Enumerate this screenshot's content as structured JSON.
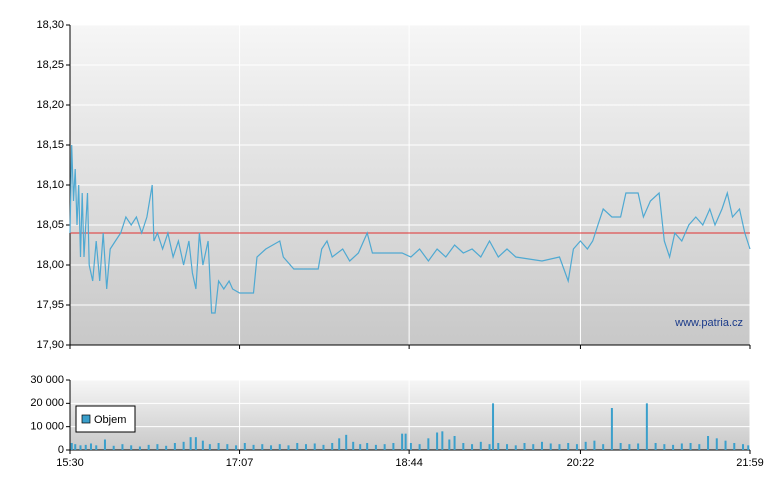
{
  "chart_data": [
    {
      "type": "line",
      "watermark": "www.patria.cz",
      "color": "#4fa9d2",
      "reference_line": {
        "value": 18.04,
        "color": "#e03030"
      },
      "xlim": [
        930,
        1319
      ],
      "ylim": [
        17.9,
        18.3
      ],
      "yticks": [
        {
          "value": 17.9,
          "label": "17,90"
        },
        {
          "value": 17.95,
          "label": "17,95"
        },
        {
          "value": 18.0,
          "label": "18,00"
        },
        {
          "value": 18.05,
          "label": "18,05"
        },
        {
          "value": 18.1,
          "label": "18,10"
        },
        {
          "value": 18.15,
          "label": "18,15"
        },
        {
          "value": 18.2,
          "label": "18,20"
        },
        {
          "value": 18.25,
          "label": "18,25"
        },
        {
          "value": 18.3,
          "label": "18,30"
        }
      ],
      "grid": true,
      "x": [
        930,
        931,
        932,
        933,
        934,
        935,
        936,
        937,
        938,
        940,
        941,
        943,
        945,
        947,
        949,
        951,
        953,
        956,
        959,
        962,
        965,
        968,
        971,
        974,
        977,
        978,
        980,
        983,
        986,
        989,
        992,
        995,
        998,
        1000,
        1002,
        1004,
        1006,
        1009,
        1011,
        1013,
        1015,
        1018,
        1021,
        1023,
        1027,
        1035,
        1037,
        1042,
        1050,
        1052,
        1058,
        1072,
        1074,
        1077,
        1080,
        1086,
        1090,
        1095,
        1100,
        1103,
        1120,
        1125,
        1130,
        1135,
        1140,
        1145,
        1150,
        1155,
        1160,
        1165,
        1170,
        1175,
        1180,
        1185,
        1200,
        1210,
        1215,
        1218,
        1222,
        1226,
        1229,
        1232,
        1235,
        1240,
        1245,
        1248,
        1255,
        1258,
        1262,
        1267,
        1270,
        1273,
        1276,
        1280,
        1284,
        1288,
        1292,
        1296,
        1299,
        1303,
        1306,
        1309,
        1313,
        1316,
        1319
      ],
      "values": [
        18.04,
        18.15,
        18.08,
        18.12,
        18.05,
        18.1,
        18.01,
        18.09,
        18.01,
        18.09,
        18.0,
        17.98,
        18.03,
        17.98,
        18.04,
        17.97,
        18.02,
        18.03,
        18.04,
        18.06,
        18.05,
        18.06,
        18.04,
        18.06,
        18.1,
        18.03,
        18.04,
        18.02,
        18.04,
        18.01,
        18.03,
        18.0,
        18.03,
        17.99,
        17.97,
        18.04,
        18.0,
        18.03,
        17.94,
        17.94,
        17.98,
        17.97,
        17.98,
        17.97,
        17.965,
        17.965,
        18.01,
        18.02,
        18.03,
        18.01,
        17.995,
        17.995,
        18.02,
        18.03,
        18.01,
        18.02,
        18.005,
        18.015,
        18.04,
        18.015,
        18.015,
        18.01,
        18.02,
        18.005,
        18.02,
        18.01,
        18.025,
        18.015,
        18.02,
        18.01,
        18.03,
        18.01,
        18.02,
        18.01,
        18.005,
        18.01,
        17.98,
        18.02,
        18.03,
        18.02,
        18.03,
        18.05,
        18.07,
        18.06,
        18.06,
        18.09,
        18.09,
        18.06,
        18.08,
        18.09,
        18.03,
        18.01,
        18.04,
        18.03,
        18.05,
        18.06,
        18.05,
        18.07,
        18.05,
        18.07,
        18.09,
        18.06,
        18.07,
        18.04,
        18.02
      ]
    },
    {
      "type": "bar",
      "color": "#3a9fcb",
      "legend": "Objem",
      "legend_position": "left",
      "xlim": [
        930,
        1319
      ],
      "ylim": [
        0,
        30000
      ],
      "yticks": [
        0,
        {
          "value": 10000,
          "label": "10 000"
        },
        {
          "value": 20000,
          "label": "20 000"
        },
        {
          "value": 30000,
          "label": "30 000"
        }
      ],
      "xticks": [
        {
          "value": 930,
          "label": "15:30"
        },
        {
          "value": 1027,
          "label": "17:07"
        },
        {
          "value": 1124,
          "label": "18:44"
        },
        {
          "value": 1222,
          "label": "20:22"
        },
        {
          "value": 1319,
          "label": "21:59"
        }
      ],
      "grid": true,
      "x": [
        931,
        933,
        936,
        939,
        942,
        945,
        950,
        955,
        960,
        965,
        970,
        975,
        980,
        985,
        990,
        995,
        999,
        1002,
        1006,
        1010,
        1015,
        1020,
        1025,
        1030,
        1035,
        1040,
        1045,
        1050,
        1055,
        1060,
        1065,
        1070,
        1075,
        1080,
        1084,
        1088,
        1092,
        1096,
        1100,
        1105,
        1110,
        1115,
        1120,
        1122,
        1125,
        1130,
        1135,
        1140,
        1143,
        1147,
        1150,
        1155,
        1160,
        1165,
        1170,
        1172,
        1175,
        1180,
        1185,
        1190,
        1195,
        1200,
        1205,
        1210,
        1215,
        1220,
        1225,
        1230,
        1235,
        1240,
        1245,
        1250,
        1255,
        1260,
        1265,
        1270,
        1275,
        1280,
        1285,
        1290,
        1295,
        1300,
        1305,
        1310,
        1315,
        1318
      ],
      "values": [
        3000,
        2500,
        2000,
        2200,
        2800,
        2000,
        4500,
        1800,
        2500,
        2000,
        1500,
        2200,
        2500,
        1800,
        3000,
        3500,
        5500,
        5500,
        4000,
        2500,
        3000,
        2500,
        2000,
        3000,
        2200,
        2500,
        2000,
        2500,
        2000,
        3000,
        2500,
        2800,
        2200,
        3000,
        5000,
        6500,
        3500,
        2500,
        3000,
        2200,
        2500,
        3000,
        7000,
        7000,
        3000,
        2500,
        5000,
        7500,
        8000,
        4500,
        6000,
        3000,
        2500,
        3500,
        2500,
        20000,
        3000,
        2500,
        2000,
        3000,
        2500,
        3500,
        2800,
        2500,
        3000,
        2500,
        3500,
        4000,
        2500,
        18000,
        3000,
        2500,
        2800,
        20000,
        3000,
        2500,
        2200,
        2800,
        3000,
        2500,
        6000,
        5000,
        4000,
        3000,
        2500,
        2000
      ]
    }
  ]
}
